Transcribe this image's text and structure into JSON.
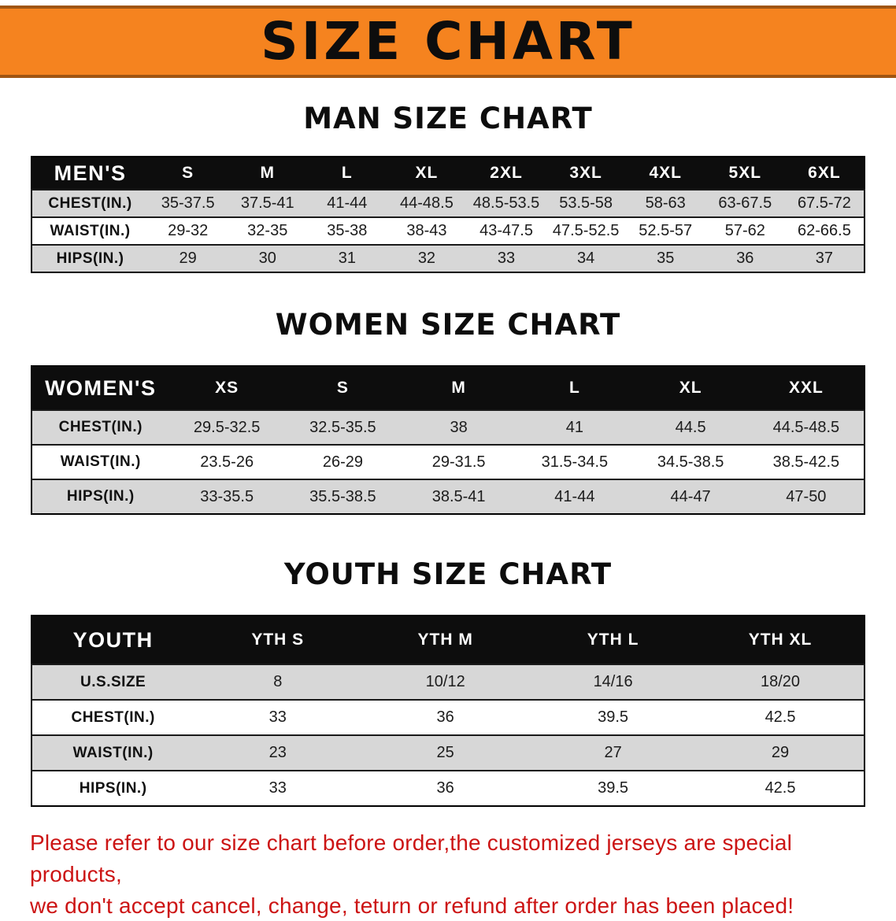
{
  "banner": {
    "title": "SIZE CHART"
  },
  "sections": [
    {
      "heading": "MAN SIZE CHART",
      "table": {
        "header": [
          "MEN'S",
          "S",
          "M",
          "L",
          "XL",
          "2XL",
          "3XL",
          "4XL",
          "5XL",
          "6XL"
        ],
        "rows": [
          [
            "CHEST(IN.)",
            "35-37.5",
            "37.5-41",
            "41-44",
            "44-48.5",
            "48.5-53.5",
            "53.5-58",
            "58-63",
            "63-67.5",
            "67.5-72"
          ],
          [
            "WAIST(IN.)",
            "29-32",
            "32-35",
            "35-38",
            "38-43",
            "43-47.5",
            "47.5-52.5",
            "52.5-57",
            "57-62",
            "62-66.5"
          ],
          [
            "HIPS(IN.)",
            "29",
            "30",
            "31",
            "32",
            "33",
            "34",
            "35",
            "36",
            "37"
          ]
        ]
      }
    },
    {
      "heading": "WOMEN SIZE CHART",
      "table": {
        "header": [
          "WOMEN'S",
          "XS",
          "S",
          "M",
          "L",
          "XL",
          "XXL"
        ],
        "rows": [
          [
            "CHEST(IN.)",
            "29.5-32.5",
            "32.5-35.5",
            "38",
            "41",
            "44.5",
            "44.5-48.5"
          ],
          [
            "WAIST(IN.)",
            "23.5-26",
            "26-29",
            "29-31.5",
            "31.5-34.5",
            "34.5-38.5",
            "38.5-42.5"
          ],
          [
            "HIPS(IN.)",
            "33-35.5",
            "35.5-38.5",
            "38.5-41",
            "41-44",
            "44-47",
            "47-50"
          ]
        ]
      }
    },
    {
      "heading": "YOUTH SIZE CHART",
      "table": {
        "header": [
          "YOUTH",
          "YTH S",
          "YTH M",
          "YTH L",
          "YTH XL"
        ],
        "rows": [
          [
            "U.S.SIZE",
            "8",
            "10/12",
            "14/16",
            "18/20"
          ],
          [
            "CHEST(IN.)",
            "33",
            "36",
            "39.5",
            "42.5"
          ],
          [
            "WAIST(IN.)",
            "23",
            "25",
            "27",
            "29"
          ],
          [
            "HIPS(IN.)",
            "33",
            "36",
            "39.5",
            "42.5"
          ]
        ]
      }
    }
  ],
  "footer_note": {
    "line1": "Please refer to our size chart before order,the customized jerseys are special products,",
    "line2": "we don't accept cancel, change, teturn or refund after order has been placed!"
  },
  "colors": {
    "banner_bg": "#f5831f",
    "banner_border": "#a05512",
    "header_bg": "#0d0d0d",
    "row_alt_bg": "#d7d7d7",
    "note_red": "#cc1414"
  }
}
